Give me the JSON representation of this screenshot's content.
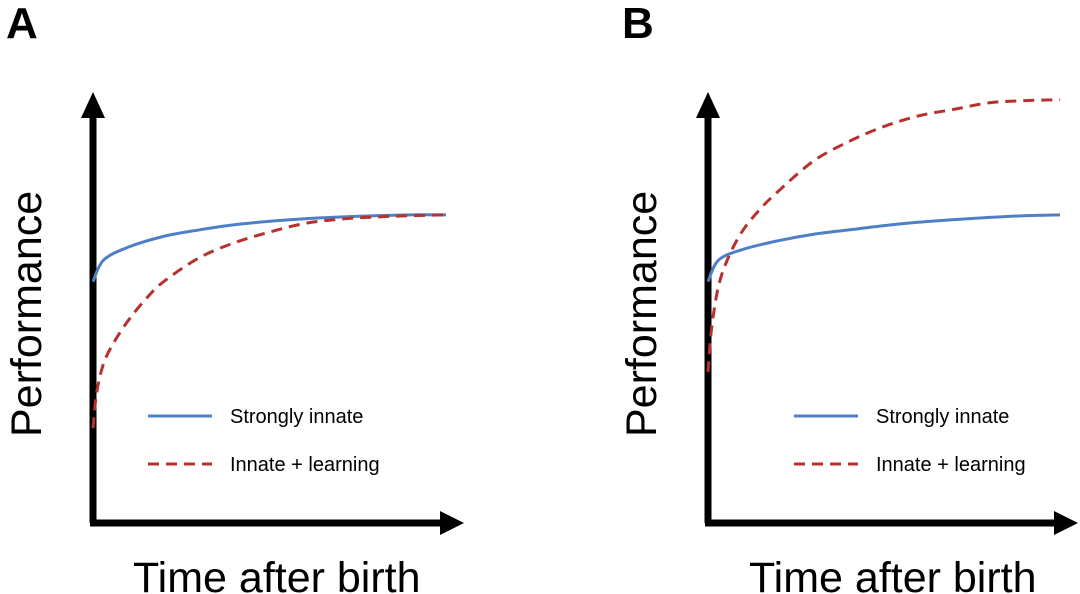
{
  "colors": {
    "strongly_innate": "#4f7fc6",
    "innate_learning": "#b8312f",
    "axis": "#000000"
  },
  "chart_data": [
    {
      "type": "line",
      "panel": "A",
      "xlabel": "Time after birth",
      "ylabel": "Performance",
      "xlim": [
        0,
        100
      ],
      "ylim": [
        0,
        100
      ],
      "legend": [
        "Strongly innate",
        "Innate + learning"
      ],
      "legend_position": "bottom-right",
      "series": [
        {
          "name": "Strongly innate",
          "style": "solid",
          "x": [
            0,
            3,
            10,
            20,
            30,
            40,
            50,
            60,
            70,
            80,
            90,
            100
          ],
          "y": [
            56,
            61,
            64,
            66.5,
            68,
            69.2,
            70,
            70.6,
            71,
            71.3,
            71.5,
            71.5
          ]
        },
        {
          "name": "Innate + learning",
          "style": "dashed",
          "x": [
            0,
            1,
            3,
            6,
            10,
            15,
            20,
            30,
            40,
            50,
            60,
            70,
            80,
            90,
            100
          ],
          "y": [
            22,
            30,
            37,
            42,
            47,
            52,
            56,
            61.5,
            65,
            67.5,
            69.5,
            70.5,
            71,
            71.3,
            71.5
          ]
        }
      ]
    },
    {
      "type": "line",
      "panel": "B",
      "xlabel": "Time after birth",
      "ylabel": "Performance",
      "xlim": [
        0,
        100
      ],
      "ylim": [
        0,
        100
      ],
      "legend": [
        "Strongly innate",
        "Innate + learning"
      ],
      "legend_position": "bottom-right",
      "series": [
        {
          "name": "Strongly innate",
          "style": "solid",
          "x": [
            0,
            3,
            10,
            20,
            30,
            40,
            50,
            60,
            70,
            80,
            90,
            100
          ],
          "y": [
            56,
            61,
            63.5,
            65.5,
            67,
            68,
            69,
            69.8,
            70.4,
            70.9,
            71.3,
            71.5
          ]
        },
        {
          "name": "Innate + learning",
          "style": "dashed",
          "x": [
            0,
            1,
            3,
            6,
            10,
            15,
            20,
            30,
            40,
            50,
            60,
            70,
            80,
            90,
            100
          ],
          "y": [
            35,
            45,
            55,
            62,
            68,
            73,
            77,
            84,
            88.5,
            92,
            94.5,
            96,
            97.5,
            98,
            98.2
          ]
        }
      ]
    }
  ]
}
